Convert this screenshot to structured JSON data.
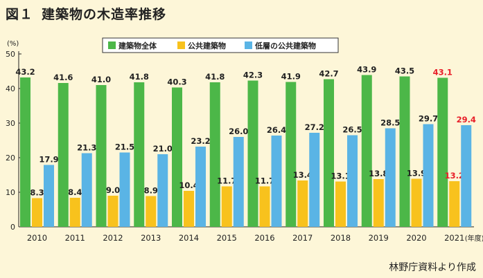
{
  "figure": {
    "number": "図１",
    "title": "建築物の木造率推移"
  },
  "source": "林野庁資料より作成",
  "chart_data": {
    "type": "bar",
    "y_unit": "(%)",
    "x_unit": "(年度)",
    "ylim": [
      0,
      50
    ],
    "yticks": [
      0,
      10,
      20,
      30,
      40,
      50
    ],
    "grid": false,
    "legend_position": "top",
    "categories": [
      "2010",
      "2011",
      "2012",
      "2013",
      "2014",
      "2015",
      "2016",
      "2017",
      "2018",
      "2019",
      "2020",
      "2021"
    ],
    "series": [
      {
        "name": "建築物全体",
        "color": "#4cb748",
        "values": [
          43.2,
          41.6,
          41.0,
          41.8,
          40.3,
          41.8,
          42.3,
          41.9,
          42.7,
          43.9,
          43.5,
          43.1
        ],
        "labels": [
          "43.2",
          "41.6",
          "41.0",
          "41.8",
          "40.3",
          "41.8",
          "42.3",
          "41.9",
          "42.7",
          "43.9",
          "43.5",
          "43.1"
        ]
      },
      {
        "name": "公共建築物",
        "color": "#f8c21d",
        "values": [
          8.3,
          8.4,
          9.0,
          8.9,
          10.4,
          11.7,
          11.7,
          13.4,
          13.1,
          13.8,
          13.9,
          13.2
        ],
        "labels": [
          "8.3",
          "8.4",
          "9.0",
          "8.9",
          "10.4",
          "11.7",
          "11.7",
          "13.4",
          "13.1",
          "13.8",
          "13.9",
          "13.2"
        ]
      },
      {
        "name": "低層の公共建築物",
        "color": "#5ab4e5",
        "values": [
          17.9,
          21.3,
          21.5,
          21.0,
          23.2,
          26.0,
          26.4,
          27.2,
          26.5,
          28.5,
          29.7,
          29.4
        ],
        "labels": [
          "17.9",
          "21.3",
          "21.5",
          "21.0",
          "23.2",
          "26.0",
          "26.4",
          "27.2",
          "26.5",
          "28.5",
          "29.7",
          "29.4"
        ]
      }
    ],
    "highlight": {
      "category": "2021",
      "label_color": "#e8202a"
    },
    "label_color": "#222222"
  }
}
